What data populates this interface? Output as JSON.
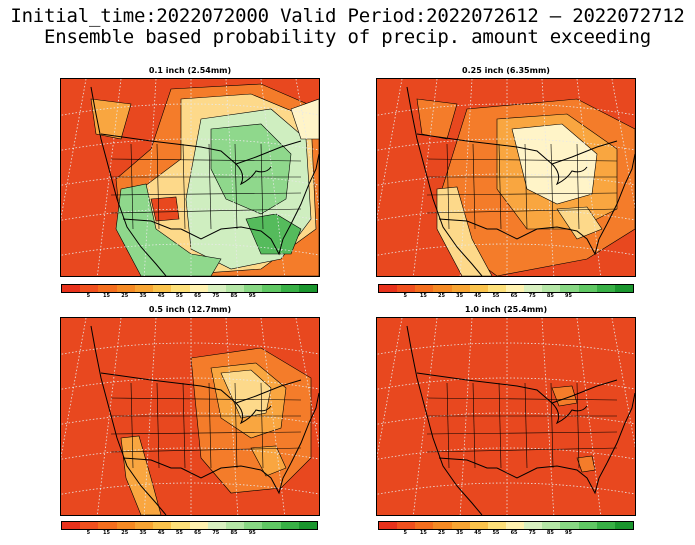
{
  "header": {
    "line1": "Initial_time:2022072000  Valid Period:2022072612 – 2022072712",
    "line2": "Ensemble based probability of precip. amount exceeding"
  },
  "panels": [
    {
      "title": "0.1 inch (2.54mm)"
    },
    {
      "title": "0.25 inch (6.35mm)"
    },
    {
      "title": "0.5 inch (12.7mm)"
    },
    {
      "title": "1.0 inch (25.4mm)"
    }
  ],
  "colorbar": {
    "colors": [
      "#e8321c",
      "#f0501e",
      "#f46e1e",
      "#f58a24",
      "#f7a534",
      "#fac34c",
      "#fde07a",
      "#fff2b0",
      "#d8f0c0",
      "#b4e6a6",
      "#88d884",
      "#60c864",
      "#38b046",
      "#1a962e"
    ],
    "labels": [
      "5",
      "15",
      "25",
      "35",
      "45",
      "55",
      "65",
      "75",
      "85",
      "95"
    ]
  },
  "map_colors": {
    "red": "#e8481f",
    "orange": "#f47c2a",
    "light_orange": "#f9a640",
    "yellow": "#fdd98a",
    "cream": "#fff4c8",
    "light_green": "#cfeec0",
    "green": "#8fd88c",
    "dark_green": "#55bb5c"
  }
}
